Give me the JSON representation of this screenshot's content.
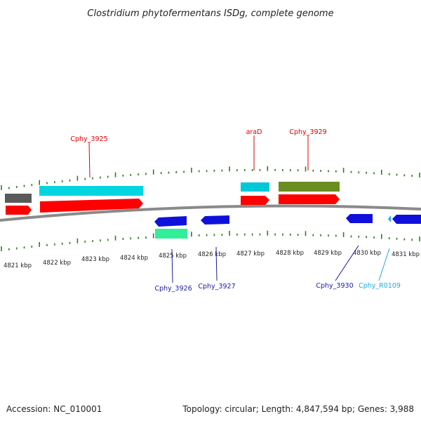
{
  "title": "Clostridium phytofermentans ISDg, complete genome",
  "accession": "Accession: NC_010001",
  "topology": "Topology: circular; Length: 4,847,594 bp; Genes: 3,988",
  "colors": {
    "backbone": "#8a8a8a",
    "tick": "#2e7d1e",
    "red": "#ff0000",
    "cyan": "#00d5e0",
    "gray": "#5a5a5a",
    "olive": "#6b8e23",
    "blue": "#1010dd",
    "spring": "#33ee99",
    "lightblue": "#22aaee",
    "label_red": "#dd0000",
    "label_blue": "#1a1aa6",
    "label_cyan": "#22aadd"
  },
  "kbp_labels": [
    "4821 kbp",
    "4822 kbp",
    "4823 kbp",
    "4824 kbp",
    "4825 kbp",
    "4826 kbp",
    "4827 kbp",
    "4828 kbp",
    "4829 kbp",
    "4830 kbp",
    "4831 kbp"
  ],
  "genes_top": [
    {
      "name": "Cphy_3925",
      "color": "label_red"
    },
    {
      "name": "araD",
      "color": "label_red"
    },
    {
      "name": "Cphy_3929",
      "color": "label_red"
    }
  ],
  "genes_bottom": [
    {
      "name": "Cphy_3926",
      "color": "label_blue"
    },
    {
      "name": "Cphy_3927",
      "color": "label_blue"
    },
    {
      "name": "Cphy_3930",
      "color": "label_blue"
    },
    {
      "name": "Cphy_R0109",
      "color": "label_cyan"
    }
  ]
}
